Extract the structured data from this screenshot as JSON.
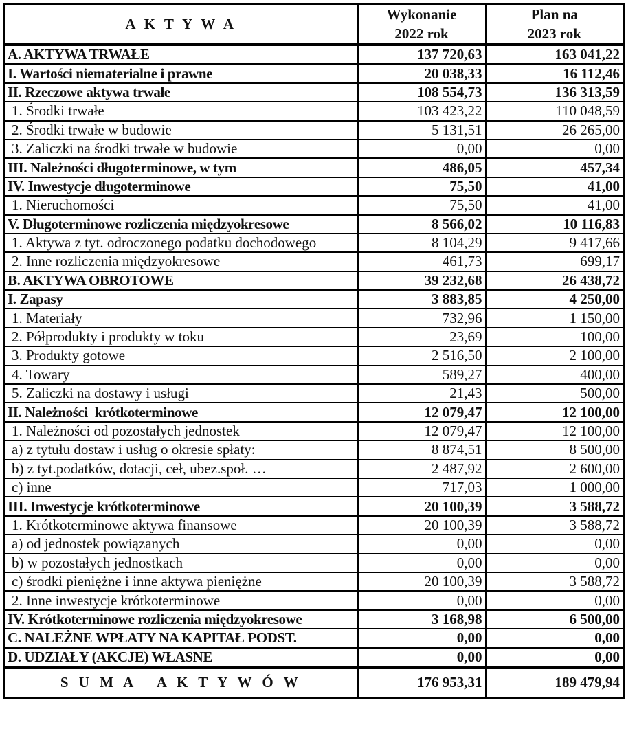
{
  "header": {
    "label": "A K T Y W A",
    "col1_line1": "Wykonanie",
    "col1_line2": "2022 rok",
    "col2_line1": "Plan na",
    "col2_line2": "2023 rok"
  },
  "rows": [
    {
      "label": "A. AKTYWA TRWAŁE",
      "v2022": "137 720,63",
      "v2023": "163 041,22",
      "bold": true
    },
    {
      "label": "I. Wartości niematerialne i prawne",
      "v2022": "20 038,33",
      "v2023": "16 112,46",
      "bold": true
    },
    {
      "label": "II. Rzeczowe aktywa trwałe",
      "v2022": "108 554,73",
      "v2023": "136 313,59",
      "bold": true
    },
    {
      "label": "1. Środki trwałe",
      "v2022": "103 423,22",
      "v2023": "110 048,59",
      "bold": false
    },
    {
      "label": "2. Środki trwałe w budowie",
      "v2022": "5 131,51",
      "v2023": "26 265,00",
      "bold": false
    },
    {
      "label": "3. Zaliczki na środki trwałe w budowie",
      "v2022": "0,00",
      "v2023": "0,00",
      "bold": false
    },
    {
      "label": "III. Należności długoterminowe, w tym",
      "v2022": "486,05",
      "v2023": "457,34",
      "bold": true
    },
    {
      "label": "IV. Inwestycje długoterminowe",
      "v2022": "75,50",
      "v2023": "41,00",
      "bold": true
    },
    {
      "label": "1. Nieruchomości",
      "v2022": "75,50",
      "v2023": "41,00",
      "bold": false
    },
    {
      "label": "V. Długoterminowe rozliczenia międzyokresowe",
      "v2022": "8 566,02",
      "v2023": "10 116,83",
      "bold": true
    },
    {
      "label": "1. Aktywa z tyt. odroczonego podatku dochodowego",
      "v2022": "8 104,29",
      "v2023": "9 417,66",
      "bold": false
    },
    {
      "label": "2. Inne rozliczenia międzyokresowe",
      "v2022": "461,73",
      "v2023": "699,17",
      "bold": false
    },
    {
      "label": "B. AKTYWA OBROTOWE",
      "v2022": "39 232,68",
      "v2023": "26 438,72",
      "bold": true
    },
    {
      "label": "I. Zapasy",
      "v2022": "3 883,85",
      "v2023": "4 250,00",
      "bold": true
    },
    {
      "label": "1. Materiały",
      "v2022": "732,96",
      "v2023": "1 150,00",
      "bold": false
    },
    {
      "label": "2. Półprodukty i produkty w toku",
      "v2022": "23,69",
      "v2023": "100,00",
      "bold": false
    },
    {
      "label": "3. Produkty gotowe",
      "v2022": "2 516,50",
      "v2023": "2 100,00",
      "bold": false
    },
    {
      "label": "4. Towary",
      "v2022": "589,27",
      "v2023": "400,00",
      "bold": false
    },
    {
      "label": "5. Zaliczki na dostawy i usługi",
      "v2022": "21,43",
      "v2023": "500,00",
      "bold": false
    },
    {
      "label": "II. Należności  krótkoterminowe",
      "v2022": "12 079,47",
      "v2023": "12 100,00",
      "bold": true
    },
    {
      "label": "1. Należności od pozostałych jednostek",
      "v2022": "12 079,47",
      "v2023": "12 100,00",
      "bold": false
    },
    {
      "label": "a) z tytułu dostaw i usług o okresie spłaty:",
      "v2022": "8 874,51",
      "v2023": "8 500,00",
      "bold": false
    },
    {
      "label": "b) z tyt.podatków, dotacji, ceł, ubez.społ. …",
      "v2022": "2 487,92",
      "v2023": "2 600,00",
      "bold": false
    },
    {
      "label": "c) inne",
      "v2022": "717,03",
      "v2023": "1 000,00",
      "bold": false
    },
    {
      "label": "III. Inwestycje krótkoterminowe",
      "v2022": "20 100,39",
      "v2023": "3 588,72",
      "bold": true
    },
    {
      "label": "1. Krótkoterminowe aktywa finansowe",
      "v2022": "20 100,39",
      "v2023": "3 588,72",
      "bold": false
    },
    {
      "label": "a) od jednostek powiązanych",
      "v2022": "0,00",
      "v2023": "0,00",
      "bold": false
    },
    {
      "label": "b) w pozostałych jednostkach",
      "v2022": "0,00",
      "v2023": "0,00",
      "bold": false
    },
    {
      "label": "c) środki pieniężne i inne aktywa pieniężne",
      "v2022": "20 100,39",
      "v2023": "3 588,72",
      "bold": false
    },
    {
      "label": "2. Inne inwestycje krótkoterminowe",
      "v2022": "0,00",
      "v2023": "0,00",
      "bold": false
    },
    {
      "label": "IV. Krótkoterminowe rozliczenia międzyokresowe",
      "v2022": "3 168,98",
      "v2023": "6 500,00",
      "bold": true
    },
    {
      "label": "C. NALEŻNE WPŁATY NA KAPITAŁ PODST.",
      "v2022": "0,00",
      "v2023": "0,00",
      "bold": true
    },
    {
      "label": "D. UDZIAŁY (AKCJE) WŁASNE",
      "v2022": "0,00",
      "v2023": "0,00",
      "bold": true
    }
  ],
  "total": {
    "label": "S U M A   A K T Y W Ó W",
    "v2022": "176 953,31",
    "v2023": "189 479,94"
  }
}
